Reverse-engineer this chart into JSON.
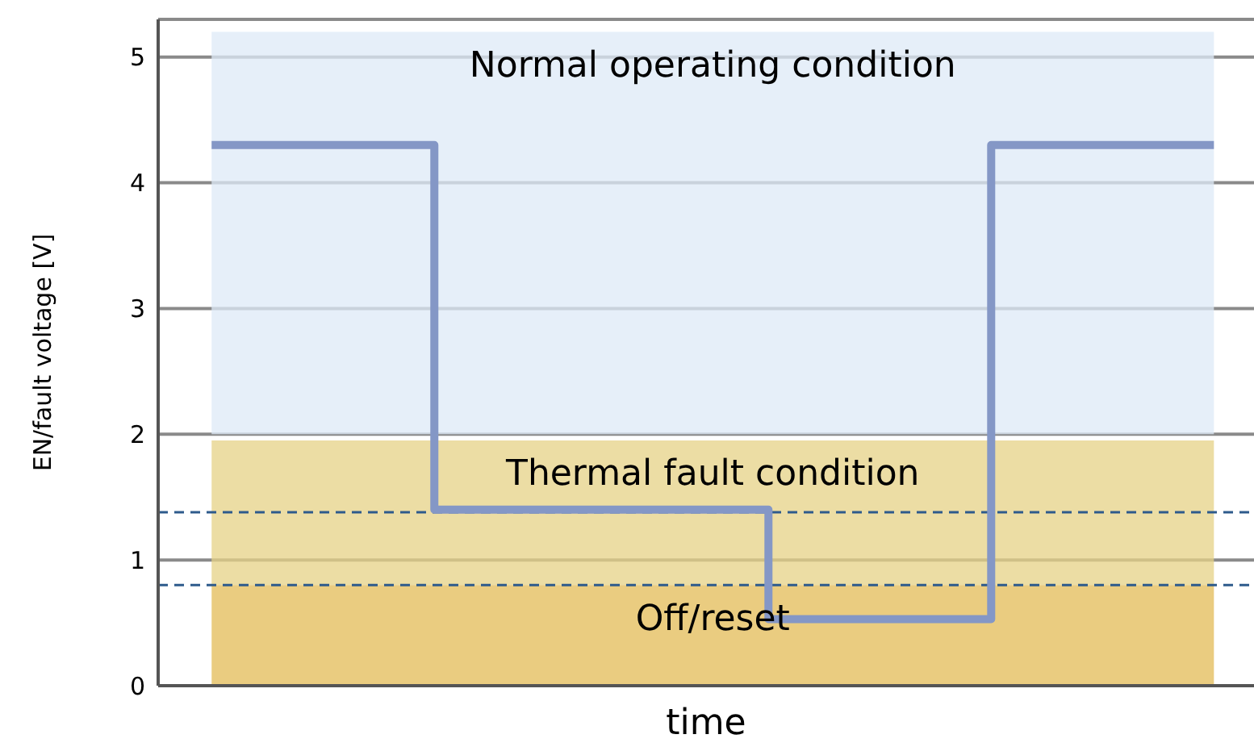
{
  "chart_data": {
    "type": "step",
    "xlabel": "time",
    "ylabel": "EN/fault voltage [V]",
    "categories": [
      null,
      null,
      null,
      null,
      null,
      null,
      null,
      null,
      null,
      null
    ],
    "series": [
      {
        "color": "#8497c6",
        "values": [
          4.3,
          4.3,
          1.4,
          1.4,
          1.4,
          0.53,
          0.53,
          4.3,
          4.3,
          4.3
        ]
      }
    ],
    "ylim": [
      0,
      5.3
    ],
    "yticks": [
      0,
      1,
      2,
      3,
      4,
      5
    ],
    "grid": "y",
    "legend": false,
    "tick_labels": "y",
    "bands": [
      {
        "axis": "y",
        "from": 2,
        "to": 5.2,
        "label": "Normal operating condition",
        "color": "#deeaf7"
      },
      {
        "axis": "y",
        "from": 0.8,
        "to": 1.95,
        "label": "Thermal fault condition",
        "color": "#e5d285"
      },
      {
        "axis": "y",
        "from": 0,
        "to": 0.8,
        "label": "Off/reset",
        "color": "#e3bb55"
      }
    ],
    "ref_lines": [
      {
        "axis": "y",
        "value": 1.38,
        "color": "#2e5b8c",
        "line_style": "dashed"
      },
      {
        "axis": "y",
        "value": 0.8,
        "color": "#2e5b8c",
        "line_style": "dashed"
      }
    ]
  }
}
